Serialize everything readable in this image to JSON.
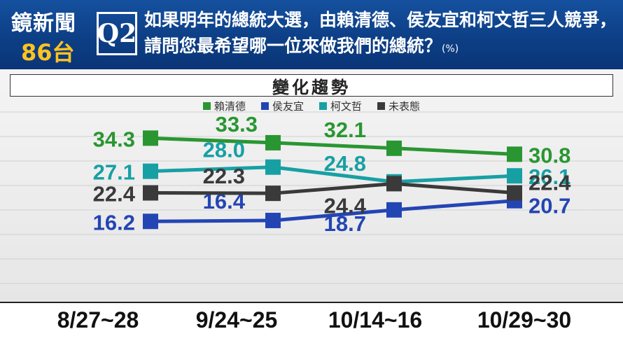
{
  "header": {
    "logo_line1": "鏡新聞",
    "logo_line2": "86台",
    "question_number": "Q2",
    "question_line1": "如果明年的總統大選，由賴清德、侯友宜和柯文哲三人競爭，",
    "question_line2": "請問您最希望哪一位來做我們的總統？",
    "question_unit": "(%)"
  },
  "colors": {
    "lai": "#2a9632",
    "hou": "#2345b4",
    "ko": "#17a0a4",
    "undecided": "#3a3a3a"
  },
  "chart_data": {
    "type": "line",
    "title": "變化趨勢",
    "categories": [
      "8/27~28",
      "9/24~25",
      "10/14~16",
      "10/29~30"
    ],
    "series": [
      {
        "name": "賴清德",
        "values": [
          34.3,
          33.3,
          32.1,
          30.8
        ]
      },
      {
        "name": "侯友宜",
        "values": [
          16.2,
          16.4,
          18.7,
          20.7
        ]
      },
      {
        "name": "柯文哲",
        "values": [
          27.1,
          28.0,
          24.8,
          26.1
        ]
      },
      {
        "name": "未表態",
        "values": [
          22.4,
          22.3,
          24.4,
          22.4
        ]
      }
    ],
    "legend_position": "top-center",
    "grid": "horizontal"
  }
}
